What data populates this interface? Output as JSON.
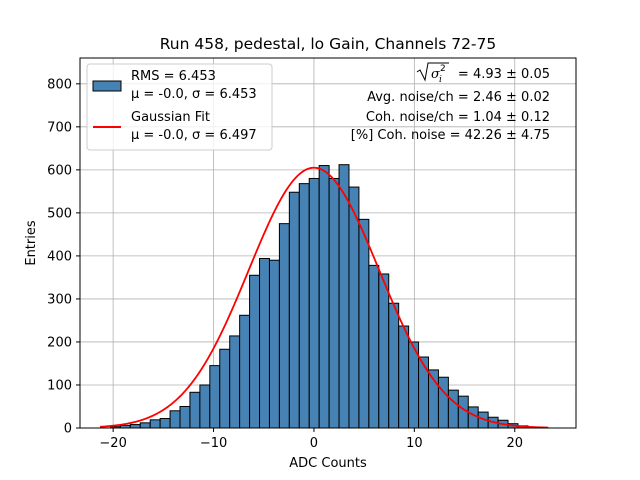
{
  "chart_data": {
    "type": "bar",
    "title": "Run 458, pedestal, lo Gain, Channels 72-75",
    "xlabel": "ADC Counts",
    "ylabel": "Entries",
    "xlim": [
      -23.3,
      26.1
    ],
    "ylim": [
      0,
      860
    ],
    "grid": true,
    "xticks": [
      -20,
      -10,
      0,
      10,
      20
    ],
    "yticks": [
      0,
      100,
      200,
      300,
      400,
      500,
      600,
      700,
      800
    ],
    "histogram": {
      "bin_start": -20.27,
      "bin_width": 0.99,
      "counts": [
        3,
        6,
        8,
        12,
        19,
        22,
        40,
        50,
        83,
        100,
        145,
        183,
        214,
        262,
        355,
        394,
        390,
        475,
        548,
        568,
        580,
        610,
        580,
        612,
        560,
        485,
        378,
        358,
        290,
        237,
        200,
        165,
        135,
        118,
        88,
        74,
        49,
        37,
        25,
        18,
        10,
        5,
        2,
        1
      ],
      "fill": "#4682b4",
      "edge": "#000000"
    },
    "fit": {
      "name": "Gaussian Fit",
      "mu": -0.0,
      "sigma": 6.497,
      "amplitude": 605,
      "x_range": [
        -21.3,
        23.3
      ],
      "color": "#ff0000"
    },
    "legend": {
      "position": "top-left",
      "entries": [
        {
          "line1": "RMS = 6.453",
          "line2": "μ = -0.0, σ = 6.453",
          "kind": "patch"
        },
        {
          "line1": "Gaussian Fit",
          "line2": "μ = -0.0, σ = 6.497",
          "kind": "line"
        }
      ]
    },
    "annotations": {
      "sigma_i_value": " = 4.93 ± 0.05",
      "lines": [
        "Avg. noise/ch = 2.46 ± 0.02",
        "Coh. noise/ch = 1.04 ± 0.12",
        "[%] Coh. noise = 42.26 ± 4.75"
      ]
    }
  }
}
